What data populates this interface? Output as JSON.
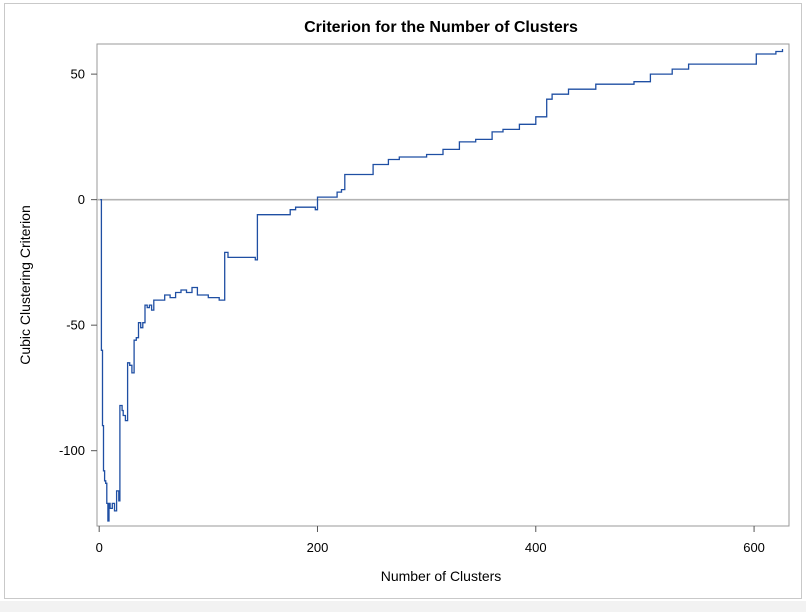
{
  "chart_data": {
    "type": "line",
    "title": "Criterion for the Number of Clusters",
    "xlabel": "Number of Clusters",
    "ylabel": "Cubic Clustering Criterion",
    "xlim": [
      -2,
      632
    ],
    "ylim": [
      -130,
      62
    ],
    "x_ticks": [
      0,
      200,
      400,
      600
    ],
    "y_ticks": [
      -100,
      -50,
      0,
      50
    ],
    "reference_line_y": 0,
    "grid": false,
    "line_color": "#1f4fa3",
    "series": [
      {
        "x": [
          1,
          2,
          3,
          4,
          5,
          6,
          7,
          8,
          9,
          10,
          12,
          14,
          16,
          18,
          19,
          21,
          22,
          24,
          26,
          28,
          30,
          32,
          34,
          36,
          38,
          40,
          42,
          44,
          46,
          48,
          50,
          55,
          60,
          65,
          70,
          75,
          80,
          85,
          90,
          95,
          100,
          105,
          110,
          114,
          115,
          118,
          125,
          135,
          143,
          145,
          155,
          165,
          175,
          180,
          198,
          200,
          215,
          218,
          222,
          225,
          230,
          250,
          251,
          265,
          275,
          300,
          315,
          330,
          345,
          360,
          370,
          385,
          400,
          410,
          415,
          430,
          455,
          470,
          490,
          505,
          525,
          540,
          560,
          600,
          602,
          620,
          626
        ],
        "y": [
          0,
          -60,
          -90,
          -108,
          -112,
          -113,
          -121,
          -128,
          -121,
          -123,
          -121,
          -124,
          -116,
          -120,
          -82,
          -84,
          -86,
          -88,
          -65,
          -66,
          -69,
          -56,
          -55,
          -49,
          -51,
          -49,
          -42,
          -43,
          -42,
          -44,
          -40,
          -40,
          -38,
          -39,
          -37,
          -36,
          -37,
          -35,
          -38,
          -38,
          -39,
          -39,
          -40,
          -40,
          -21,
          -23,
          -23,
          -23,
          -24,
          -6,
          -6,
          -6,
          -4,
          -3,
          -4,
          1,
          1,
          3,
          4,
          10,
          10,
          10,
          14,
          16,
          17,
          18,
          20,
          23,
          24,
          27,
          28,
          30,
          33,
          40,
          42,
          44,
          46,
          46,
          47,
          50,
          52,
          54,
          54,
          54,
          58,
          59,
          60
        ]
      }
    ]
  }
}
